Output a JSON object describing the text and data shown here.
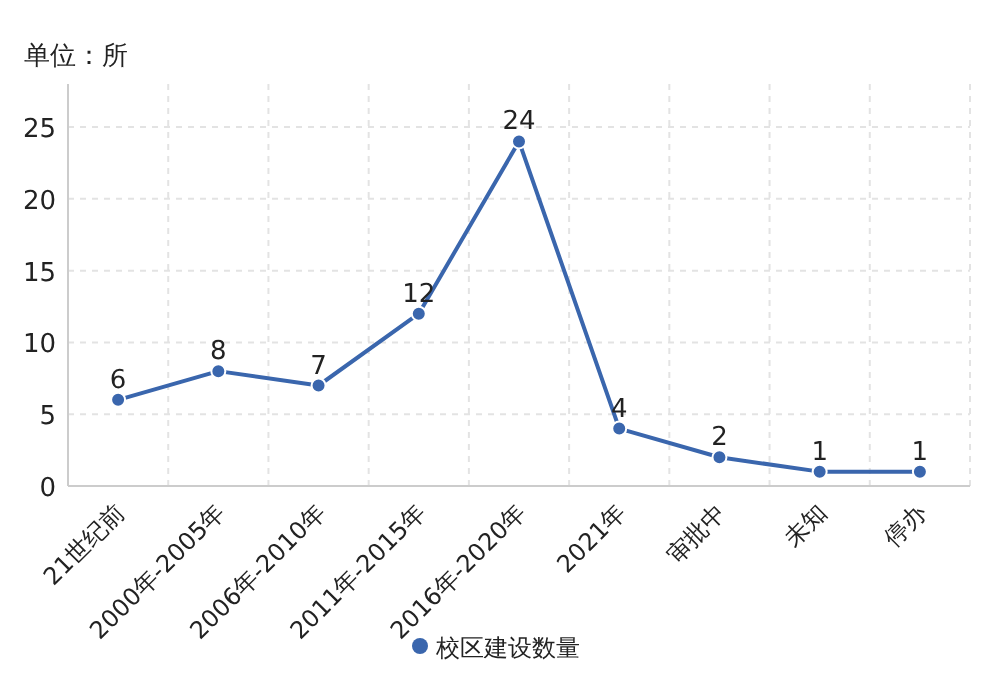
{
  "chart_data": {
    "type": "line",
    "title": "单位：所",
    "categories": [
      "21世纪前",
      "2000年-2005年",
      "2006年-2010年",
      "2011年-2015年",
      "2016年-2020年",
      "2021年",
      "审批中",
      "未知",
      "停办"
    ],
    "series": [
      {
        "name": "校区建设数量",
        "color": "#3a66ad",
        "values": [
          6,
          8,
          7,
          12,
          24,
          4,
          2,
          1,
          1
        ]
      }
    ],
    "ylim": [
      0,
      28
    ],
    "yticks": [
      0,
      5,
      10,
      15,
      20,
      25
    ],
    "grid": true,
    "legend": "bottom",
    "marker": "circle",
    "data_labels": true
  }
}
